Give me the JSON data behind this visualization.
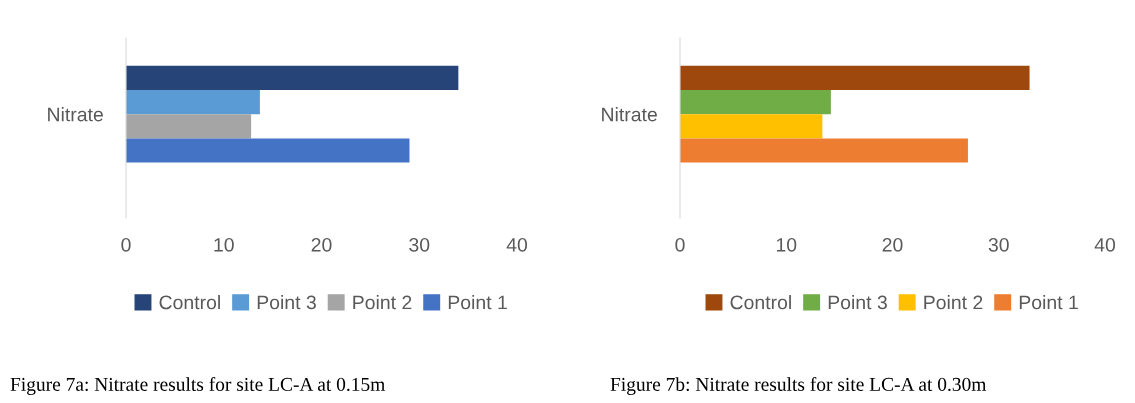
{
  "chart_data": [
    {
      "type": "bar",
      "orientation": "horizontal",
      "categories": [
        "Nitrate"
      ],
      "series": [
        {
          "name": "Control",
          "color": "#264478",
          "values": [
            34.0
          ]
        },
        {
          "name": "Point 3",
          "color": "#5b9bd5",
          "values": [
            13.7
          ]
        },
        {
          "name": "Point 2",
          "color": "#a5a5a5",
          "values": [
            12.8
          ]
        },
        {
          "name": "Point 1",
          "color": "#4472c4",
          "values": [
            29.0
          ]
        }
      ],
      "xlim": [
        0,
        40
      ],
      "xticks": [
        0,
        10,
        20,
        30,
        40
      ],
      "grid": false,
      "legend": "bottom",
      "annotations": [
        "Figure 7a: Nitrate results for site LC-A at 0.15m"
      ]
    },
    {
      "type": "bar",
      "orientation": "horizontal",
      "categories": [
        "Nitrate"
      ],
      "series": [
        {
          "name": "Control",
          "color": "#9e480e",
          "values": [
            32.9
          ]
        },
        {
          "name": "Point 3",
          "color": "#70ad47",
          "values": [
            14.2
          ]
        },
        {
          "name": "Point 2",
          "color": "#ffc000",
          "values": [
            13.4
          ]
        },
        {
          "name": "Point 1",
          "color": "#ed7d31",
          "values": [
            27.1
          ]
        }
      ],
      "xlim": [
        0,
        40
      ],
      "xticks": [
        0,
        10,
        20,
        30,
        40
      ],
      "grid": false,
      "legend": "bottom",
      "annotations": [
        "Figure 7b: Nitrate results for site LC-A at 0.30m"
      ]
    }
  ]
}
